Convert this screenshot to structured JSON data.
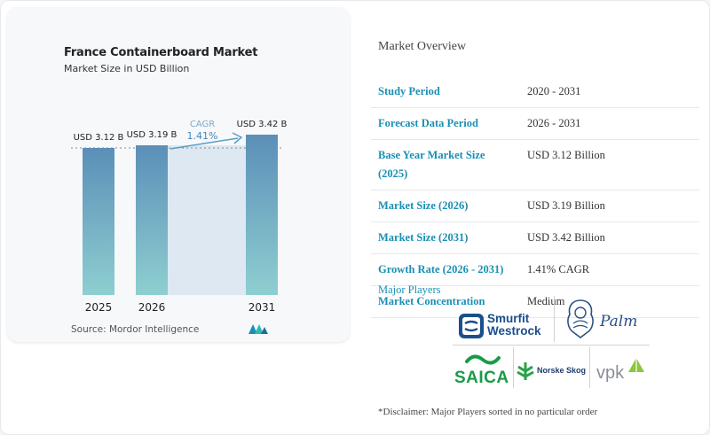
{
  "chart_card": {
    "title": "France Containerboard Market",
    "subtitle": "Market Size in USD Billion",
    "source": "Source: Mordor Intelligence"
  },
  "chart_data": {
    "type": "bar",
    "title": "France Containerboard Market",
    "subtitle": "Market Size in USD Billion",
    "categories": [
      "2025",
      "2026",
      "2031"
    ],
    "values": [
      3.12,
      3.19,
      3.42
    ],
    "data_labels": [
      "USD 3.12 B",
      "USD 3.19 B",
      "USD 3.42 B"
    ],
    "annotation": {
      "label": "CAGR",
      "value": "1.41%"
    },
    "ylim": [
      0,
      3.6
    ],
    "grid": false,
    "colors": {
      "bar_top": "#5b8fb8",
      "bar_bottom": "#8ecfd0",
      "band": "#dde8f2",
      "arrow": "#5b9dc9"
    }
  },
  "overview": {
    "title": "Market Overview",
    "rows": [
      {
        "label": "Study Period",
        "value": "2020 - 2031"
      },
      {
        "label": "Forecast Data Period",
        "value": "2026 - 2031"
      },
      {
        "label": "Base Year Market Size (2025)",
        "value": "USD 3.12 Billion"
      },
      {
        "label": "Market Size (2026)",
        "value": "USD 3.19 Billion"
      },
      {
        "label": "Market Size (2031)",
        "value": "USD 3.42 Billion"
      },
      {
        "label": "Growth Rate (2026 - 2031)",
        "value": "1.41% CAGR"
      },
      {
        "label": "Market Concentration",
        "value": "Medium"
      }
    ]
  },
  "major_players": {
    "title": "Major Players",
    "logos": [
      {
        "name": "Smurfit Westrock",
        "line1": "Smurfit",
        "line2": "Westrock"
      },
      {
        "name": "Palm",
        "text": "Palm"
      },
      {
        "name": "SAICA",
        "text": "SAICA"
      },
      {
        "name": "Norske Skog",
        "text": "Norske Skog"
      },
      {
        "name": "VPK",
        "text": "vpk"
      }
    ],
    "disclaimer": "*Disclaimer: Major Players sorted in no particular order"
  },
  "colors": {
    "accent": "#1a8fb4"
  }
}
